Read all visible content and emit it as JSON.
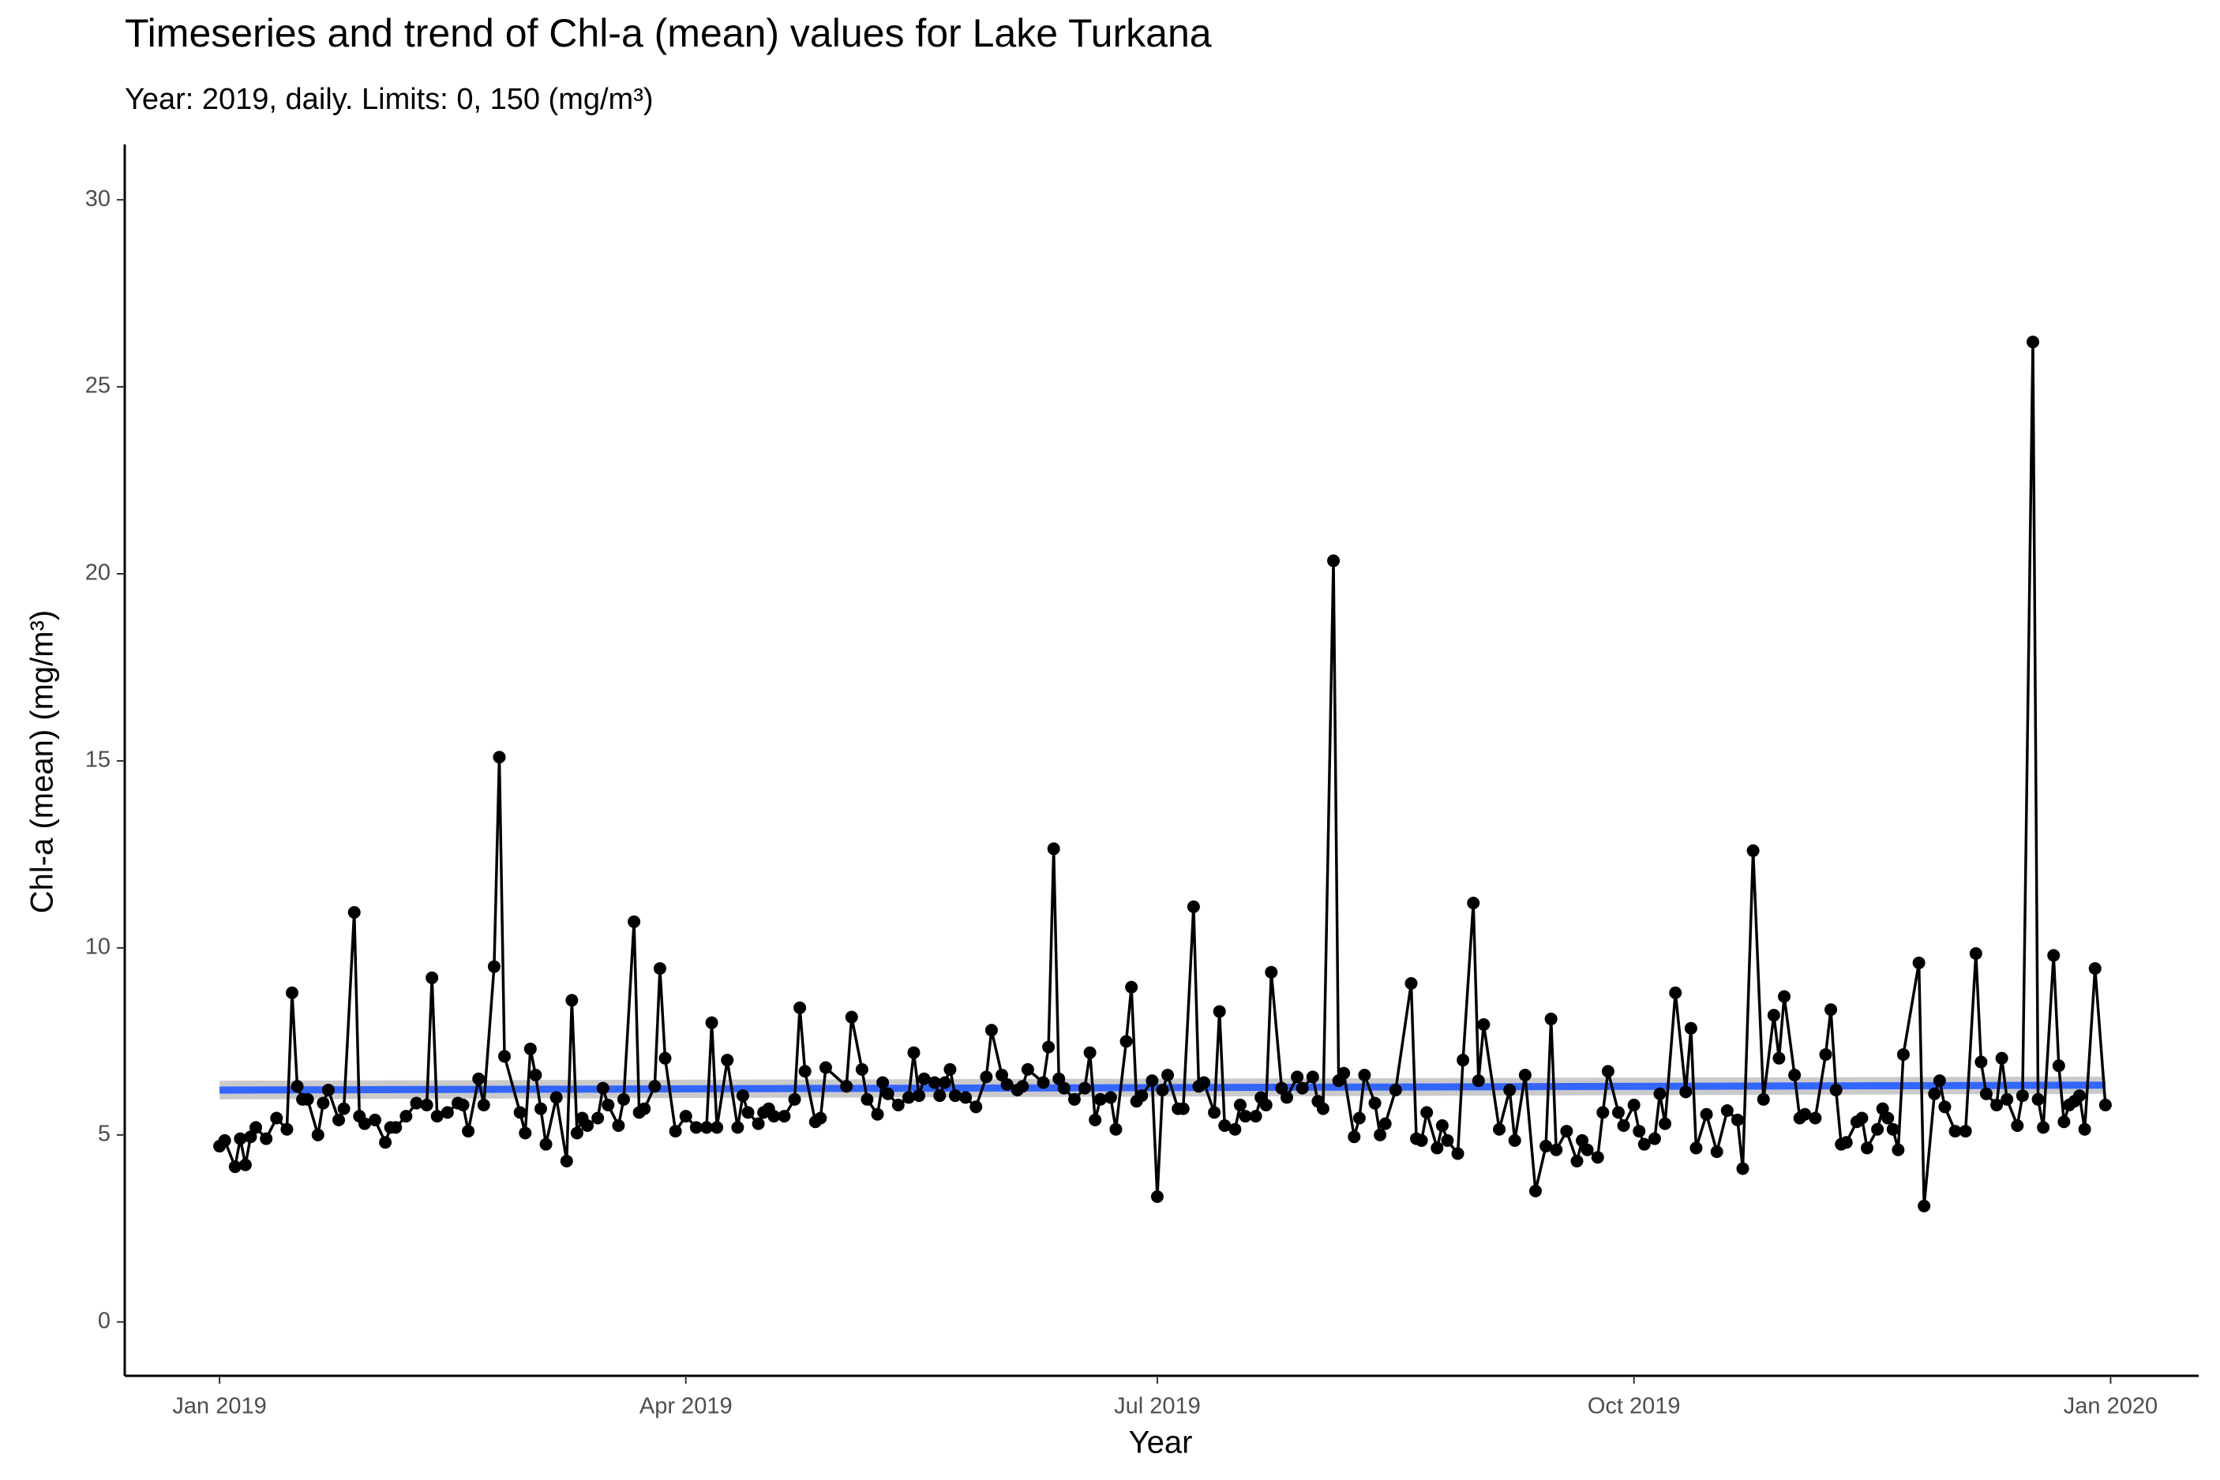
{
  "chart_data": {
    "type": "line",
    "title": "Timeseries and trend of Chl-a (mean) values for Lake Turkana",
    "subtitle": "Year: 2019, daily. Limits: 0, 150 (mg/m³)",
    "x_label": "Year",
    "y_label": "Chl-a (mean) (mg/m³)",
    "x": [
      0,
      1,
      3,
      4,
      5,
      6,
      7,
      9,
      11,
      13,
      14,
      15,
      16,
      17,
      19,
      20,
      21,
      23,
      24,
      26,
      27,
      28,
      30,
      32,
      33,
      34,
      36,
      38,
      40,
      41,
      42,
      44,
      46,
      47,
      48,
      50,
      51,
      53,
      54,
      55,
      58,
      59,
      60,
      61,
      62,
      63,
      65,
      67,
      68,
      69,
      70,
      71,
      73,
      74,
      75,
      77,
      78,
      80,
      81,
      82,
      84,
      85,
      86,
      88,
      90,
      92,
      94,
      95,
      96,
      98,
      100,
      101,
      102,
      104,
      105,
      106,
      107,
      109,
      111,
      112,
      113,
      115,
      116,
      117,
      121,
      122,
      124,
      125,
      127,
      128,
      129,
      131,
      133,
      134,
      135,
      136,
      138,
      139,
      140,
      141,
      142,
      144,
      146,
      148,
      149,
      151,
      152,
      154,
      155,
      156,
      159,
      160,
      161,
      162,
      163,
      165,
      167,
      168,
      169,
      170,
      172,
      173,
      175,
      176,
      177,
      178,
      180,
      181,
      182,
      183,
      185,
      186,
      188,
      189,
      190,
      192,
      193,
      194,
      196,
      197,
      198,
      200,
      201,
      202,
      203,
      205,
      206,
      208,
      209,
      211,
      212,
      213,
      215,
      216,
      217,
      219,
      220,
      221,
      223,
      224,
      225,
      227,
      230,
      231,
      232,
      233,
      235,
      236,
      237,
      239,
      240,
      242,
      243,
      244,
      247,
      249,
      250,
      252,
      254,
      256,
      257,
      258,
      260,
      262,
      263,
      264,
      266,
      267,
      268,
      270,
      271,
      273,
      274,
      275,
      277,
      278,
      279,
      281,
      283,
      284,
      285,
      287,
      289,
      291,
      293,
      294,
      296,
      298,
      300,
      301,
      302,
      304,
      305,
      306,
      308,
      310,
      311,
      312,
      313,
      314,
      316,
      317,
      318,
      320,
      321,
      322,
      323,
      324,
      325,
      328,
      329,
      331,
      332,
      333,
      335,
      337,
      339,
      340,
      341,
      343,
      344,
      345,
      347,
      348,
      350,
      351,
      352,
      354,
      355,
      356,
      357,
      358,
      359,
      360,
      362,
      364
    ],
    "values": [
      4.7,
      4.85,
      4.15,
      4.9,
      4.2,
      4.95,
      5.2,
      4.9,
      5.45,
      5.15,
      8.8,
      6.3,
      5.95,
      5.95,
      5.0,
      5.85,
      6.2,
      5.4,
      5.7,
      10.95,
      5.5,
      5.3,
      5.4,
      4.8,
      5.2,
      5.2,
      5.5,
      5.85,
      5.8,
      9.2,
      5.5,
      5.6,
      5.85,
      5.8,
      5.1,
      6.5,
      5.8,
      9.5,
      15.1,
      7.1,
      5.6,
      5.05,
      7.3,
      6.6,
      5.7,
      4.75,
      6.0,
      4.3,
      8.6,
      5.05,
      5.45,
      5.25,
      5.45,
      6.25,
      5.8,
      5.25,
      5.95,
      10.7,
      5.6,
      5.7,
      6.3,
      9.45,
      7.05,
      5.1,
      5.5,
      5.2,
      5.2,
      8.0,
      5.2,
      7.0,
      5.2,
      6.05,
      5.6,
      5.3,
      5.6,
      5.7,
      5.5,
      5.5,
      5.95,
      8.4,
      6.7,
      5.35,
      5.45,
      6.8,
      6.3,
      8.15,
      6.75,
      5.95,
      5.55,
      6.4,
      6.1,
      5.8,
      6.0,
      7.2,
      6.05,
      6.5,
      6.4,
      6.05,
      6.4,
      6.75,
      6.05,
      6.0,
      5.75,
      6.55,
      7.8,
      6.6,
      6.35,
      6.2,
      6.3,
      6.75,
      6.4,
      7.35,
      12.65,
      6.5,
      6.25,
      5.95,
      6.25,
      7.2,
      5.4,
      5.95,
      6.0,
      5.15,
      7.5,
      8.95,
      5.9,
      6.05,
      6.45,
      3.35,
      6.2,
      6.6,
      5.7,
      5.7,
      11.1,
      6.3,
      6.4,
      5.6,
      8.3,
      5.25,
      5.15,
      5.8,
      5.5,
      5.5,
      6.0,
      5.8,
      9.35,
      6.25,
      6.0,
      6.55,
      6.25,
      6.55,
      5.9,
      5.7,
      20.35,
      6.45,
      6.65,
      4.95,
      5.45,
      6.6,
      5.85,
      5.0,
      5.3,
      6.2,
      9.05,
      4.9,
      4.85,
      5.6,
      4.65,
      5.25,
      4.85,
      4.5,
      7.0,
      11.2,
      6.45,
      7.95,
      5.15,
      6.2,
      4.85,
      6.6,
      3.5,
      4.7,
      8.1,
      4.6,
      5.1,
      4.3,
      4.85,
      4.6,
      4.4,
      5.6,
      6.7,
      5.6,
      5.25,
      5.8,
      5.1,
      4.75,
      4.9,
      6.1,
      5.3,
      8.8,
      6.15,
      7.85,
      4.65,
      5.55,
      4.55,
      5.65,
      5.4,
      4.1,
      12.6,
      5.95,
      8.2,
      7.05,
      8.7,
      6.6,
      5.45,
      5.55,
      5.45,
      7.15,
      8.35,
      6.2,
      4.75,
      4.8,
      5.35,
      5.45,
      4.65,
      5.15,
      5.7,
      5.45,
      5.15,
      4.6,
      7.15,
      9.6,
      3.1,
      6.1,
      6.45,
      5.75,
      5.1,
      5.1,
      9.85,
      6.95,
      6.1,
      5.8,
      7.05,
      5.95,
      5.25,
      6.05,
      26.2,
      5.95,
      5.2,
      9.8,
      6.85,
      5.35,
      5.8,
      5.9,
      6.05,
      5.15,
      9.45,
      5.8
    ],
    "color": "#000000",
    "trend": {
      "x": [
        0,
        364
      ],
      "values": [
        6.2,
        6.33
      ],
      "lower": [
        5.95,
        6.1
      ],
      "upper": [
        6.45,
        6.56
      ],
      "color": "#3366ff",
      "band_color": "#bdbdbd"
    },
    "xlim": [
      -18.3,
      382
    ],
    "ylim": [
      -1.44,
      31.48
    ],
    "xticks": [
      {
        "value": 0,
        "label": "Jan 2019"
      },
      {
        "value": 90,
        "label": "Apr 2019"
      },
      {
        "value": 181,
        "label": "Jul 2019"
      },
      {
        "value": 273,
        "label": "Oct 2019"
      },
      {
        "value": 365,
        "label": "Jan 2020"
      }
    ],
    "yticks": [
      0,
      5,
      10,
      15,
      20,
      25,
      30
    ],
    "grid": false
  }
}
